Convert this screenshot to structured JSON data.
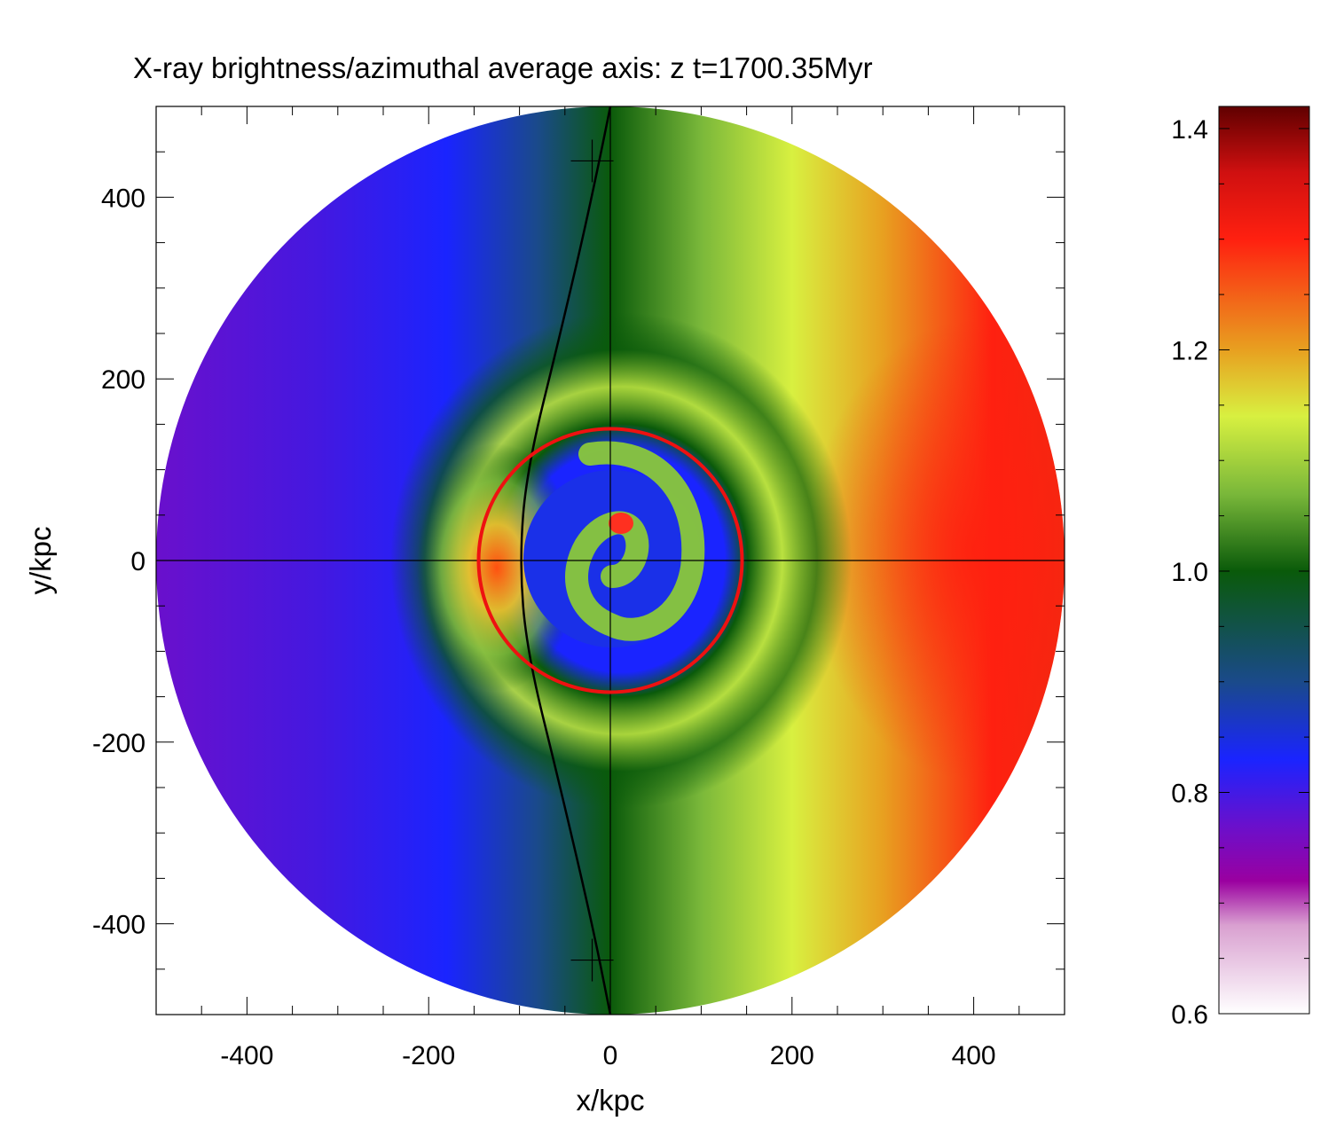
{
  "chart_data": {
    "type": "heatmap",
    "title": "X-ray brightness/azimuthal average  axis: z  t=1700.35Myr",
    "xlabel": "x/kpc",
    "ylabel": "y/kpc",
    "xlim": [
      -500,
      500
    ],
    "ylim": [
      -500,
      500
    ],
    "x_ticks": [
      "-400",
      "-200",
      "0",
      "200",
      "400"
    ],
    "y_ticks": [
      "-400",
      "-200",
      "0",
      "200",
      "400"
    ],
    "x_tick_values": [
      -400,
      -200,
      0,
      200,
      400
    ],
    "y_tick_values": [
      -400,
      -200,
      0,
      200,
      400
    ],
    "map_radius_kpc": 500,
    "colorbar": {
      "range": [
        0.6,
        1.42
      ],
      "ticks": [
        "0.6",
        "0.8",
        "1.0",
        "1.2",
        "1.4"
      ],
      "tick_values": [
        0.6,
        0.8,
        1.0,
        1.2,
        1.4
      ],
      "colormap": [
        {
          "value": 0.6,
          "color": "#ffffff"
        },
        {
          "value": 0.68,
          "color": "#d9a0d0"
        },
        {
          "value": 0.72,
          "color": "#9a00a0"
        },
        {
          "value": 0.77,
          "color": "#6a10cc"
        },
        {
          "value": 0.83,
          "color": "#1a24ff"
        },
        {
          "value": 0.9,
          "color": "#1a4a8a"
        },
        {
          "value": 1.0,
          "color": "#0a5a0a"
        },
        {
          "value": 1.07,
          "color": "#7ab83a"
        },
        {
          "value": 1.14,
          "color": "#d8f040"
        },
        {
          "value": 1.2,
          "color": "#e8a020"
        },
        {
          "value": 1.3,
          "color": "#ff2010"
        },
        {
          "value": 1.36,
          "color": "#d01010"
        },
        {
          "value": 1.42,
          "color": "#600000"
        }
      ]
    },
    "overlays": {
      "red_circle_radius_kpc": 145,
      "red_circle_color": "#ee1111",
      "crosshair_center": [
        0,
        0
      ],
      "black_arc_points": [
        [
          0,
          500
        ],
        [
          -20,
          400
        ],
        [
          -55,
          250
        ],
        [
          -92,
          100
        ],
        [
          -100,
          0
        ],
        [
          -92,
          -100
        ],
        [
          -55,
          -250
        ],
        [
          -20,
          -400
        ],
        [
          0,
          -500
        ]
      ],
      "cross_markers": [
        [
          -20,
          440
        ],
        [
          -20,
          -440
        ]
      ]
    },
    "features": {
      "left_half_mean": 0.82,
      "right_half_mean": 1.2,
      "core_radius_kpc": 110
    }
  }
}
